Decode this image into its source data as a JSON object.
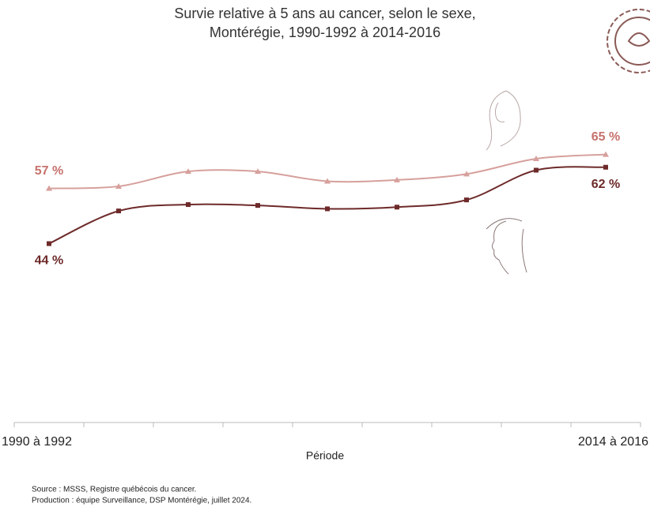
{
  "chart_data": {
    "type": "line",
    "title": "Survie relative à 5 ans au cancer, selon le sexe,",
    "subtitle": "Montérégie, 1990-1992 à 2014-2016",
    "x_label": "Période",
    "categories": [
      "1990 à 1992",
      null,
      null,
      null,
      null,
      null,
      null,
      null,
      "2014 à 2016"
    ],
    "ylim": [
      0,
      80
    ],
    "series": [
      {
        "color": "#d6a09c",
        "label_color": "#c6716c",
        "marker": "triangle",
        "values": [
          57,
          57.5,
          61,
          61,
          58.7,
          59,
          60.4,
          64,
          65
        ],
        "value_labels": [
          "57 %",
          null,
          null,
          null,
          null,
          null,
          null,
          null,
          "65 %"
        ]
      },
      {
        "color": "#6e2a2a",
        "label_color": "#6e2a2a",
        "marker": "square",
        "values": [
          44,
          51.7,
          53.2,
          53,
          52.2,
          52.6,
          54.3,
          61.3,
          62
        ],
        "value_labels": [
          "44 %",
          null,
          null,
          null,
          null,
          null,
          null,
          null,
          "62 %"
        ]
      }
    ],
    "source": "Source : MSSS, Registre québécois du cancer.",
    "production": "Production : équipe Surveillance, DSP Montérégie, juillet 2024."
  }
}
